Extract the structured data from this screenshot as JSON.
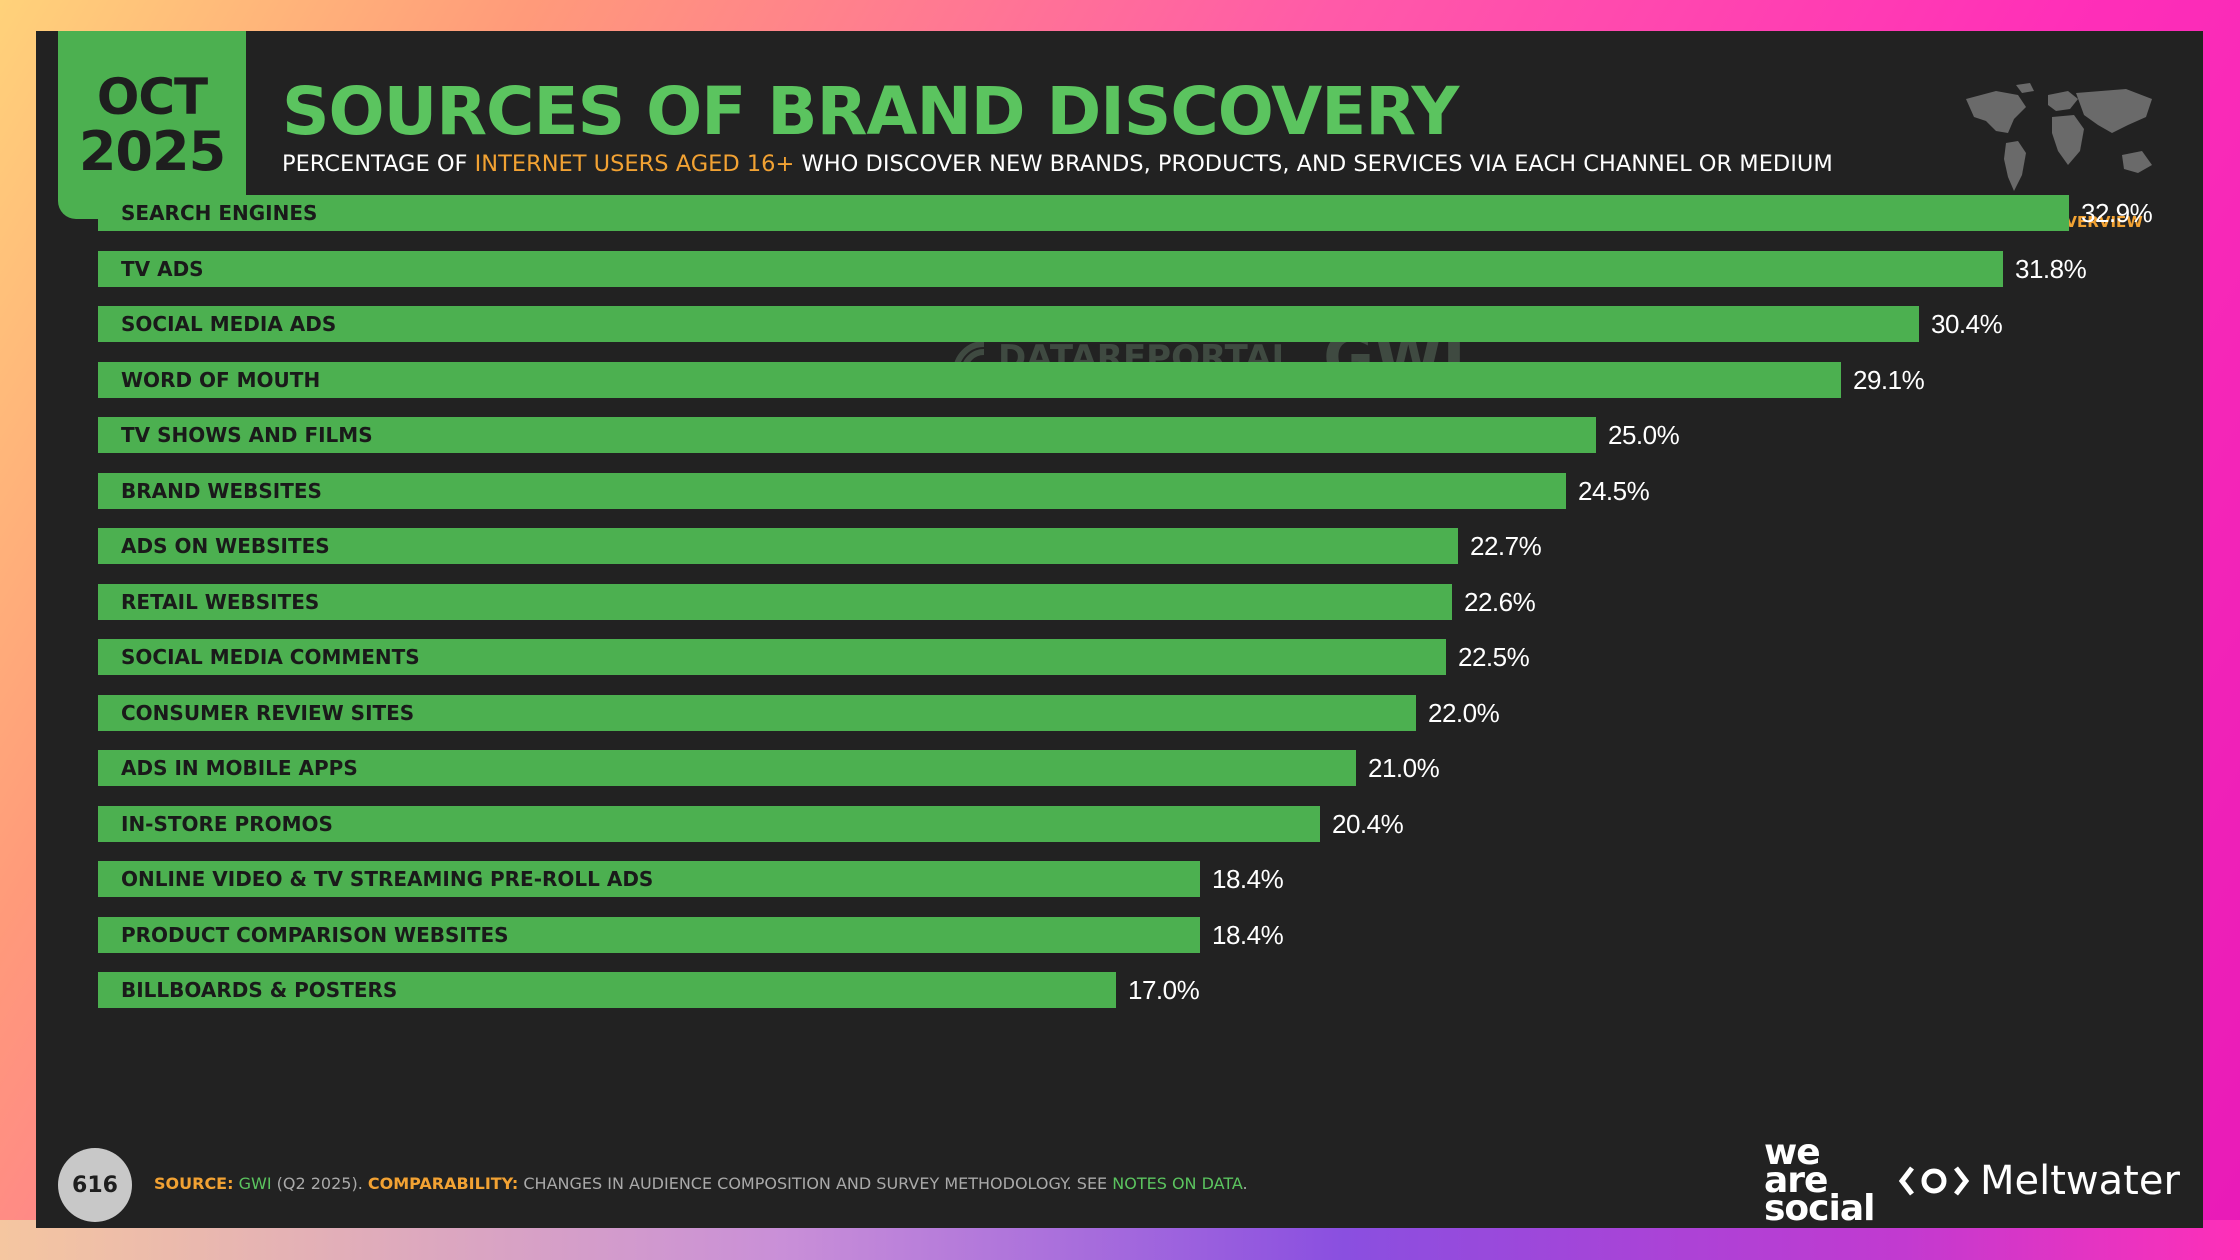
{
  "header": {
    "date_month": "OCT",
    "date_year": "2025",
    "title": "SOURCES OF BRAND DISCOVERY",
    "subtitle_pre": "PERCENTAGE OF ",
    "subtitle_highlight": "INTERNET USERS AGED 16+",
    "subtitle_post": " WHO DISCOVER NEW BRANDS, PRODUCTS, AND SERVICES VIA EACH CHANNEL OR MEDIUM",
    "region_label": "GLOBAL OVERVIEW"
  },
  "watermark": {
    "datareportal": "DATAREPORTAL",
    "gwi": "GWI."
  },
  "chart_data": {
    "type": "bar",
    "orientation": "horizontal",
    "categories": [
      "SEARCH ENGINES",
      "TV ADS",
      "SOCIAL MEDIA ADS",
      "WORD OF MOUTH",
      "TV SHOWS AND FILMS",
      "BRAND WEBSITES",
      "ADS ON WEBSITES",
      "RETAIL WEBSITES",
      "SOCIAL MEDIA COMMENTS",
      "CONSUMER REVIEW SITES",
      "ADS IN MOBILE APPS",
      "IN-STORE PROMOS",
      "ONLINE VIDEO & TV STREAMING PRE-ROLL ADS",
      "PRODUCT COMPARISON WEBSITES",
      "BILLBOARDS & POSTERS"
    ],
    "values": [
      32.9,
      31.8,
      30.4,
      29.1,
      25.0,
      24.5,
      22.7,
      22.6,
      22.5,
      22.0,
      21.0,
      20.4,
      18.4,
      18.4,
      17.0
    ],
    "value_labels": [
      "32.9%",
      "31.8%",
      "30.4%",
      "29.1%",
      "25.0%",
      "24.5%",
      "22.7%",
      "22.6%",
      "22.5%",
      "22.0%",
      "21.0%",
      "20.4%",
      "18.4%",
      "18.4%",
      "17.0%"
    ],
    "xlim": [
      0,
      32.9
    ],
    "bar_color": "#4cb050"
  },
  "footer": {
    "page_number": "616",
    "source_key": "SOURCE:",
    "source_text": " GWI ",
    "source_period": "(Q2 2025). ",
    "comparability_key": "COMPARABILITY:",
    "comparability_text": " CHANGES IN AUDIENCE COMPOSITION AND SURVEY METHODOLOGY. SEE ",
    "notes_link": "NOTES ON DATA",
    "notes_end": ".",
    "brand_we": "we",
    "brand_are": "are",
    "brand_social": "social",
    "brand_meltwater": "Meltwater"
  },
  "colors": {
    "accent_green": "#4cb050",
    "title_green": "#5bc45f",
    "highlight_orange": "#f2a233",
    "slide_bg": "#222222"
  }
}
